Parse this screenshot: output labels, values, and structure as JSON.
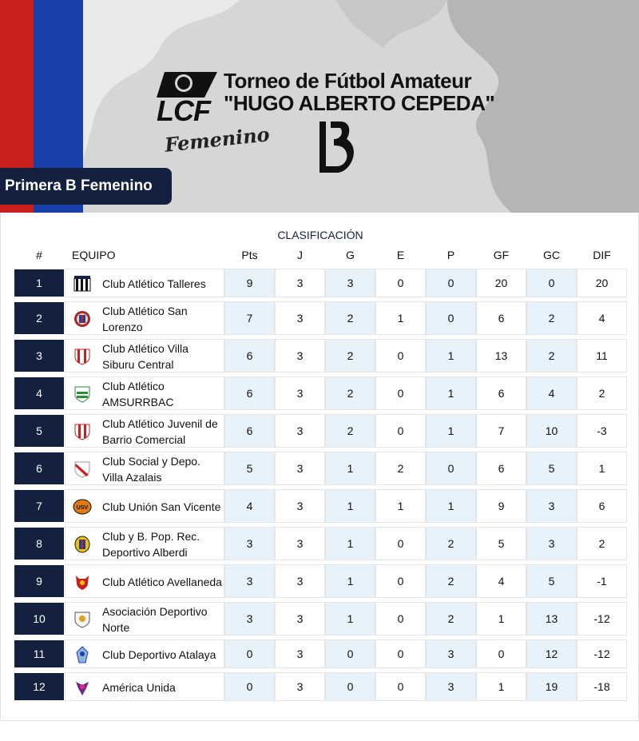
{
  "header": {
    "title_line1": "Torneo de Fútbol Amateur",
    "title_line2": "\"HUGO ALBERTO CEPEDA\"",
    "logo_text": "LCF",
    "logo_subtext": "Femenino",
    "category": "Primera B Femenino",
    "colors": {
      "red": "#c8201c",
      "blue": "#1a3fa8",
      "navy": "#14203f"
    }
  },
  "table": {
    "title": "CLASIFICACIÓN",
    "columns": [
      "#",
      "EQUIPO",
      "Pts",
      "J",
      "G",
      "E",
      "P",
      "GF",
      "GC",
      "DIF"
    ],
    "rows": [
      {
        "pos": "1",
        "team": "Club Atlético Talleres",
        "crest": "stripes-crest-icon",
        "pts": "9",
        "j": "3",
        "g": "3",
        "e": "0",
        "p": "0",
        "gf": "20",
        "gc": "0",
        "dif": "20"
      },
      {
        "pos": "2",
        "team": "Club Atlético San Lorenzo",
        "crest": "circle-crest-icon",
        "pts": "7",
        "j": "3",
        "g": "2",
        "e": "1",
        "p": "0",
        "gf": "6",
        "gc": "2",
        "dif": "4"
      },
      {
        "pos": "3",
        "team": "Club Atlético Villa Siburu Central",
        "crest": "shield-crest-icon",
        "pts": "6",
        "j": "3",
        "g": "2",
        "e": "0",
        "p": "1",
        "gf": "13",
        "gc": "2",
        "dif": "11"
      },
      {
        "pos": "4",
        "team": "Club Atlético AMSURRBAC",
        "crest": "green-shield-icon",
        "pts": "6",
        "j": "3",
        "g": "2",
        "e": "0",
        "p": "1",
        "gf": "6",
        "gc": "4",
        "dif": "2"
      },
      {
        "pos": "5",
        "team": "Club Atlético Juvenil de Barrio Comercial",
        "crest": "red-shield-icon",
        "pts": "6",
        "j": "3",
        "g": "2",
        "e": "0",
        "p": "1",
        "gf": "7",
        "gc": "10",
        "dif": "-3"
      },
      {
        "pos": "6",
        "team": "Club Social y Depo. Villa Azalais",
        "crest": "sash-crest-icon",
        "pts": "5",
        "j": "3",
        "g": "1",
        "e": "2",
        "p": "0",
        "gf": "6",
        "gc": "5",
        "dif": "1"
      },
      {
        "pos": "7",
        "team": "Club Unión San Vicente",
        "crest": "orange-badge-icon",
        "pts": "4",
        "j": "3",
        "g": "1",
        "e": "1",
        "p": "1",
        "gf": "9",
        "gc": "3",
        "dif": "6"
      },
      {
        "pos": "8",
        "team": "Club y B. Pop. Rec. Deportivo Alberdi",
        "crest": "yellow-crest-icon",
        "pts": "3",
        "j": "3",
        "g": "1",
        "e": "0",
        "p": "2",
        "gf": "5",
        "gc": "3",
        "dif": "2"
      },
      {
        "pos": "9",
        "team": "Club Atlético Avellaneda",
        "crest": "devil-crest-icon",
        "pts": "3",
        "j": "3",
        "g": "1",
        "e": "0",
        "p": "2",
        "gf": "4",
        "gc": "5",
        "dif": "-1"
      },
      {
        "pos": "10",
        "team": "Asociación Deportivo Norte",
        "crest": "white-shield-icon",
        "pts": "3",
        "j": "3",
        "g": "1",
        "e": "0",
        "p": "2",
        "gf": "1",
        "gc": "13",
        "dif": "-12"
      },
      {
        "pos": "11",
        "team": "Club Deportivo Atalaya",
        "crest": "blue-crest-icon",
        "pts": "0",
        "j": "3",
        "g": "0",
        "e": "0",
        "p": "3",
        "gf": "0",
        "gc": "12",
        "dif": "-12"
      },
      {
        "pos": "12",
        "team": "América Unida",
        "crest": "purple-crest-icon",
        "pts": "0",
        "j": "3",
        "g": "0",
        "e": "0",
        "p": "3",
        "gf": "1",
        "gc": "19",
        "dif": "-18"
      }
    ]
  }
}
